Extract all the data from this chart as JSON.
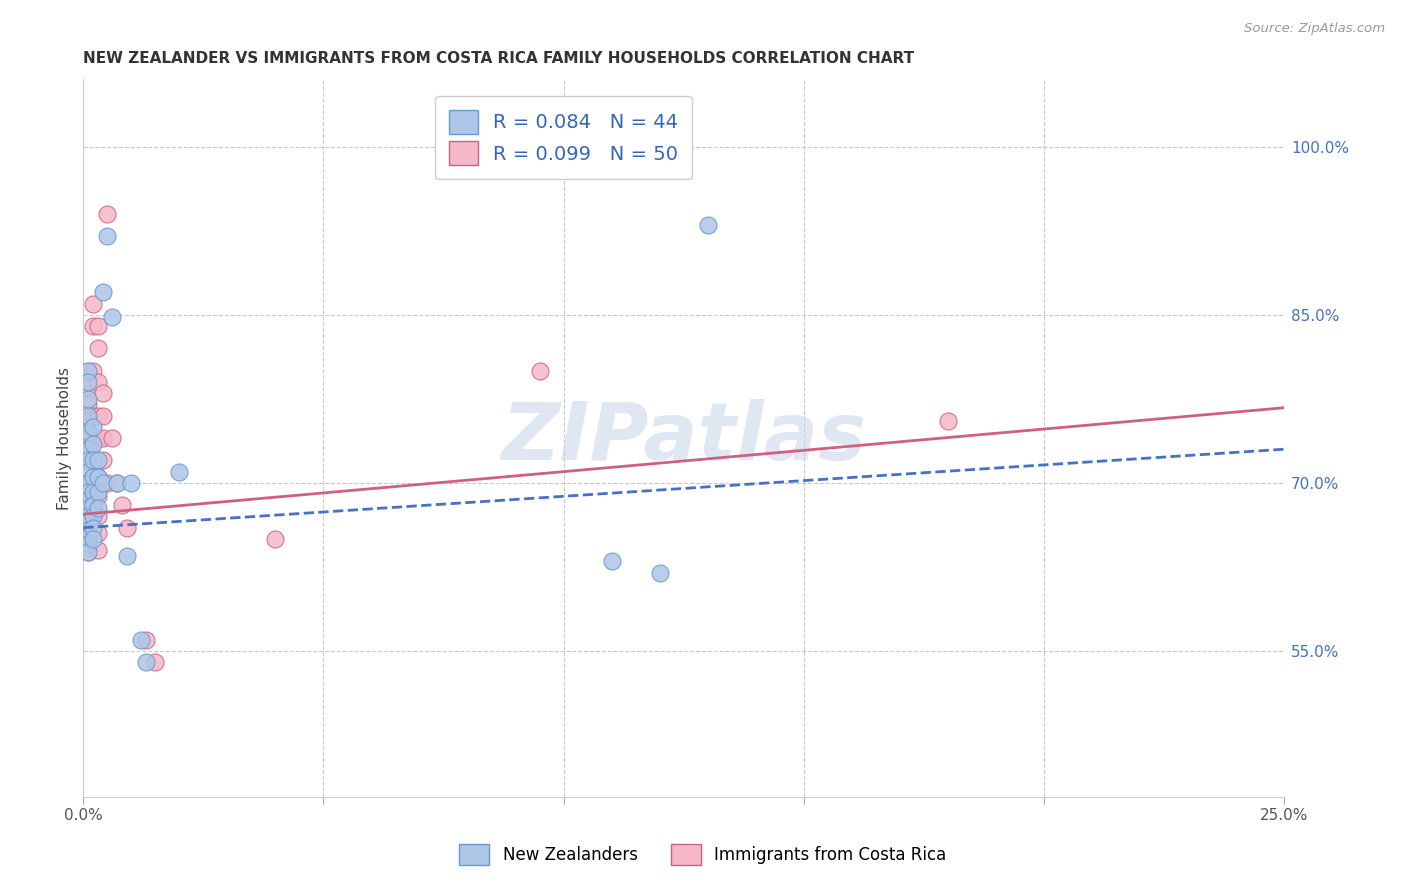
{
  "title": "NEW ZEALANDER VS IMMIGRANTS FROM COSTA RICA FAMILY HOUSEHOLDS CORRELATION CHART",
  "source": "Source: ZipAtlas.com",
  "ylabel": "Family Households",
  "yticks": [
    "55.0%",
    "70.0%",
    "85.0%",
    "100.0%"
  ],
  "ytick_vals": [
    0.55,
    0.7,
    0.85,
    1.0
  ],
  "xlim": [
    0.0,
    0.25
  ],
  "ylim": [
    0.42,
    1.06
  ],
  "blue_color": "#aec6e8",
  "blue_edge": "#6699cc",
  "pink_color": "#f5b8c8",
  "pink_edge": "#d06080",
  "watermark": "ZIPatlas",
  "blue_line_color": "#4472c4",
  "pink_line_color": "#d06080",
  "blue_line_intercept": 0.66,
  "blue_line_slope": 0.28,
  "pink_line_intercept": 0.672,
  "pink_line_slope": 0.38,
  "blue_points": [
    [
      0.001,
      0.8
    ],
    [
      0.001,
      0.79
    ],
    [
      0.001,
      0.775
    ],
    [
      0.001,
      0.76
    ],
    [
      0.001,
      0.745
    ],
    [
      0.001,
      0.73
    ],
    [
      0.001,
      0.72
    ],
    [
      0.001,
      0.71
    ],
    [
      0.001,
      0.7
    ],
    [
      0.001,
      0.692
    ],
    [
      0.001,
      0.685
    ],
    [
      0.001,
      0.678
    ],
    [
      0.001,
      0.67
    ],
    [
      0.001,
      0.665
    ],
    [
      0.001,
      0.658
    ],
    [
      0.001,
      0.652
    ],
    [
      0.001,
      0.645
    ],
    [
      0.001,
      0.638
    ],
    [
      0.002,
      0.75
    ],
    [
      0.002,
      0.735
    ],
    [
      0.002,
      0.72
    ],
    [
      0.002,
      0.705
    ],
    [
      0.002,
      0.692
    ],
    [
      0.002,
      0.68
    ],
    [
      0.002,
      0.67
    ],
    [
      0.002,
      0.66
    ],
    [
      0.002,
      0.65
    ],
    [
      0.003,
      0.72
    ],
    [
      0.003,
      0.705
    ],
    [
      0.003,
      0.692
    ],
    [
      0.003,
      0.678
    ],
    [
      0.004,
      0.87
    ],
    [
      0.004,
      0.7
    ],
    [
      0.005,
      0.92
    ],
    [
      0.006,
      0.848
    ],
    [
      0.007,
      0.7
    ],
    [
      0.009,
      0.635
    ],
    [
      0.01,
      0.7
    ],
    [
      0.012,
      0.56
    ],
    [
      0.013,
      0.54
    ],
    [
      0.02,
      0.71
    ],
    [
      0.11,
      0.63
    ],
    [
      0.13,
      0.93
    ],
    [
      0.12,
      0.62
    ]
  ],
  "pink_points": [
    [
      0.001,
      0.8
    ],
    [
      0.001,
      0.785
    ],
    [
      0.001,
      0.77
    ],
    [
      0.001,
      0.755
    ],
    [
      0.001,
      0.74
    ],
    [
      0.001,
      0.73
    ],
    [
      0.001,
      0.72
    ],
    [
      0.001,
      0.71
    ],
    [
      0.001,
      0.7
    ],
    [
      0.001,
      0.69
    ],
    [
      0.001,
      0.68
    ],
    [
      0.001,
      0.67
    ],
    [
      0.001,
      0.66
    ],
    [
      0.001,
      0.65
    ],
    [
      0.001,
      0.638
    ],
    [
      0.002,
      0.86
    ],
    [
      0.002,
      0.84
    ],
    [
      0.002,
      0.8
    ],
    [
      0.002,
      0.76
    ],
    [
      0.002,
      0.74
    ],
    [
      0.002,
      0.72
    ],
    [
      0.002,
      0.705
    ],
    [
      0.002,
      0.69
    ],
    [
      0.002,
      0.675
    ],
    [
      0.003,
      0.84
    ],
    [
      0.003,
      0.82
    ],
    [
      0.003,
      0.79
    ],
    [
      0.003,
      0.76
    ],
    [
      0.003,
      0.74
    ],
    [
      0.003,
      0.72
    ],
    [
      0.003,
      0.705
    ],
    [
      0.003,
      0.688
    ],
    [
      0.003,
      0.67
    ],
    [
      0.003,
      0.655
    ],
    [
      0.003,
      0.64
    ],
    [
      0.004,
      0.78
    ],
    [
      0.004,
      0.76
    ],
    [
      0.004,
      0.74
    ],
    [
      0.004,
      0.72
    ],
    [
      0.005,
      0.94
    ],
    [
      0.005,
      0.7
    ],
    [
      0.006,
      0.74
    ],
    [
      0.007,
      0.7
    ],
    [
      0.008,
      0.68
    ],
    [
      0.009,
      0.66
    ],
    [
      0.013,
      0.56
    ],
    [
      0.015,
      0.54
    ],
    [
      0.04,
      0.65
    ],
    [
      0.095,
      0.8
    ],
    [
      0.18,
      0.755
    ]
  ]
}
